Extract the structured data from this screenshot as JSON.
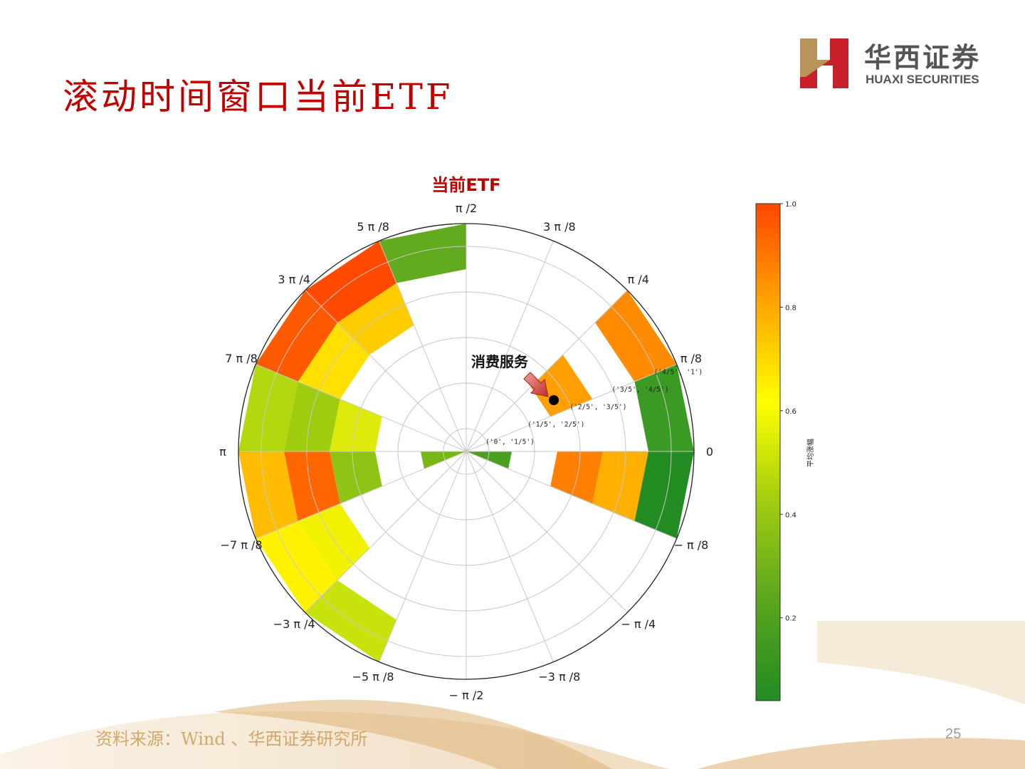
{
  "slide": {
    "title": "滚动时间窗口当前ETF",
    "page_number": "25",
    "source": "资料来源：Wind 、华西证券研究所"
  },
  "logo": {
    "cn": "华西证券",
    "en": "HUAXI SECURITIES",
    "gold": "#b8935a",
    "red": "#c8202a"
  },
  "chart_data": {
    "type": "polar_bar",
    "title": "当前ETF",
    "angle_tick_labels": [
      {
        "angle_deg": 0,
        "label": "0"
      },
      {
        "angle_deg": 22.5,
        "label": "π /8"
      },
      {
        "angle_deg": 45,
        "label": "π /4"
      },
      {
        "angle_deg": 67.5,
        "label": "3 π /8"
      },
      {
        "angle_deg": 90,
        "label": "π /2"
      },
      {
        "angle_deg": 112.5,
        "label": "5 π /8"
      },
      {
        "angle_deg": 135,
        "label": "3 π /4"
      },
      {
        "angle_deg": 157.5,
        "label": "7 π /8"
      },
      {
        "angle_deg": 180,
        "label": "π"
      },
      {
        "angle_deg": -157.5,
        "label": "−7 π /8"
      },
      {
        "angle_deg": -135,
        "label": "−3 π /4"
      },
      {
        "angle_deg": -112.5,
        "label": "−5 π /8"
      },
      {
        "angle_deg": -90,
        "label": "− π /2"
      },
      {
        "angle_deg": -67.5,
        "label": "−3 π /8"
      },
      {
        "angle_deg": -45,
        "label": "− π /4"
      },
      {
        "angle_deg": -22.5,
        "label": "− π /8"
      }
    ],
    "radial_bins": [
      "('0', '1/5')",
      "('1/5', '2/5')",
      "('2/5', '3/5')",
      "('3/5', '4/5')",
      "('4/5', '1')"
    ],
    "radial_gridlines": [
      0.1,
      0.3,
      0.5,
      0.7,
      0.9
    ],
    "rlim": [
      0,
      1
    ],
    "colorbar": {
      "label": "平均涨幅",
      "ticks": [
        "0.2",
        "0.4",
        "0.6",
        "0.8",
        "1.0"
      ],
      "range": [
        0.04,
        1.0
      ],
      "colormap": [
        "#228B22",
        "#5aa51e",
        "#a0cc10",
        "#ffff00",
        "#ffa500",
        "#ff4500"
      ]
    },
    "bars": [
      {
        "sector_deg": [
          0,
          22.5
        ],
        "bin": 4,
        "value": 0.12,
        "color": "#3A9A24"
      },
      {
        "sector_deg": [
          22.5,
          45
        ],
        "bin": 2,
        "value": 0.78,
        "color": "#FFA000"
      },
      {
        "sector_deg": [
          22.5,
          45
        ],
        "bin": 4,
        "value": 0.84,
        "color": "#FF8C00"
      },
      {
        "sector_deg": [
          90,
          112.5
        ],
        "bin": 4,
        "value": 0.2,
        "color": "#62AA1E"
      },
      {
        "sector_deg": [
          112.5,
          135
        ],
        "bin": 3,
        "value": 0.7,
        "color": "#FFCC00"
      },
      {
        "sector_deg": [
          112.5,
          135
        ],
        "bin": 4,
        "value": 0.97,
        "color": "#FF4A00"
      },
      {
        "sector_deg": [
          135,
          157.5
        ],
        "bin": 3,
        "value": 0.64,
        "color": "#FFE000"
      },
      {
        "sector_deg": [
          135,
          157.5
        ],
        "bin": 4,
        "value": 0.94,
        "color": "#FF5A00"
      },
      {
        "sector_deg": [
          157.5,
          180
        ],
        "bin": 2,
        "value": 0.46,
        "color": "#DDEA0A"
      },
      {
        "sector_deg": [
          157.5,
          180
        ],
        "bin": 3,
        "value": 0.32,
        "color": "#A0CC10"
      },
      {
        "sector_deg": [
          157.5,
          180
        ],
        "bin": 4,
        "value": 0.38,
        "color": "#B4D810"
      },
      {
        "sector_deg": [
          -180,
          -157.5
        ],
        "bin": 0,
        "value": 0.24,
        "color": "#78B814"
      },
      {
        "sector_deg": [
          -180,
          -157.5
        ],
        "bin": 2,
        "value": 0.28,
        "color": "#90C414"
      },
      {
        "sector_deg": [
          -180,
          -157.5
        ],
        "bin": 3,
        "value": 0.91,
        "color": "#FF6600"
      },
      {
        "sector_deg": [
          -180,
          -157.5
        ],
        "bin": 4,
        "value": 0.74,
        "color": "#FFBC00"
      },
      {
        "sector_deg": [
          -157.5,
          -135
        ],
        "bin": 3,
        "value": 0.54,
        "color": "#F2F200"
      },
      {
        "sector_deg": [
          -157.5,
          -135
        ],
        "bin": 4,
        "value": 0.56,
        "color": "#FFF200"
      },
      {
        "sector_deg": [
          -135,
          -112.5
        ],
        "bin": 4,
        "value": 0.42,
        "color": "#C8E20C"
      },
      {
        "sector_deg": [
          -22.5,
          0
        ],
        "bin": 0,
        "value": 0.18,
        "color": "#4CA020"
      },
      {
        "sector_deg": [
          -22.5,
          0
        ],
        "bin": 2,
        "value": 0.87,
        "color": "#FF7F00"
      },
      {
        "sector_deg": [
          -22.5,
          0
        ],
        "bin": 3,
        "value": 0.76,
        "color": "#FFB000"
      },
      {
        "sector_deg": [
          -22.5,
          0
        ],
        "bin": 4,
        "value": 0.06,
        "color": "#228B22"
      }
    ],
    "annotation": {
      "text": "消费服务",
      "marker_angle_deg": 33,
      "marker_radius": 0.5
    }
  }
}
